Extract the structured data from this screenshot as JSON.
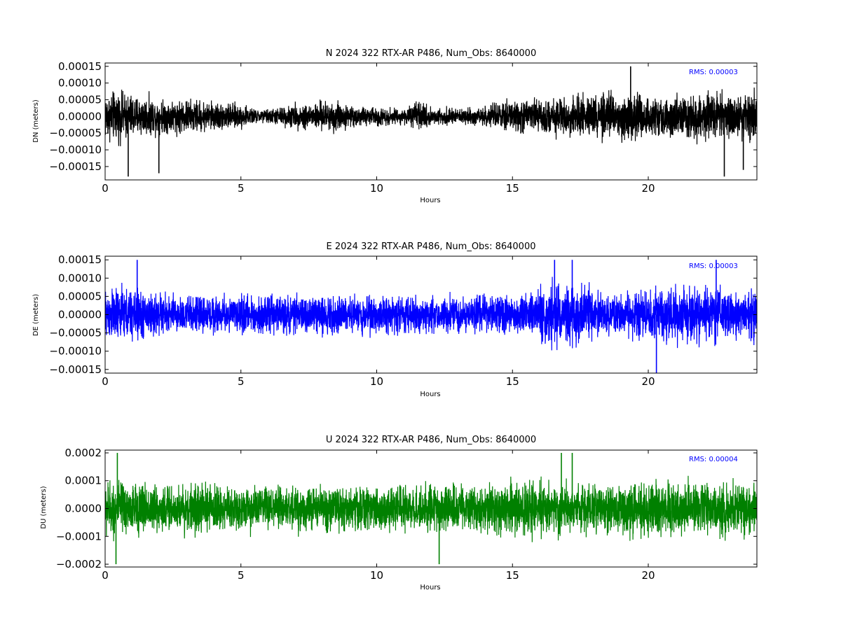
{
  "chart_data": [
    {
      "type": "line",
      "title": "N 2024 322 RTX-AR  P486, Num_Obs: 8640000",
      "xlabel": "Hours",
      "ylabel": "DN (meters)",
      "xlim": [
        0,
        24
      ],
      "ylim": [
        -0.00019,
        0.00016
      ],
      "xticks": [
        0,
        5,
        10,
        15,
        20
      ],
      "yticks": [
        -0.00015,
        -0.0001,
        -5e-05,
        0,
        5e-05,
        0.0001,
        0.00015
      ],
      "ytick_labels": [
        "−0.00015",
        "−0.00010",
        "−0.00005",
        "0.00000",
        "0.00005",
        "0.00010",
        "0.00015"
      ],
      "rms_label": "RMS:  0.00003",
      "color": "#000000",
      "envelope_hours": [
        0,
        0.5,
        1,
        2,
        3,
        4,
        5,
        5.5,
        6,
        7,
        8,
        8.5,
        9,
        10,
        11,
        11.5,
        12,
        13,
        14,
        15,
        16,
        17,
        18,
        19,
        20,
        21,
        22,
        23,
        24
      ],
      "envelope_amplitude": [
        0.0001,
        0.0001,
        9e-05,
        7e-05,
        7e-05,
        6e-05,
        5e-05,
        3e-05,
        3e-05,
        5e-05,
        6e-05,
        7e-05,
        4e-05,
        4e-05,
        3e-05,
        6e-05,
        4e-05,
        3e-05,
        4e-05,
        7e-05,
        7e-05,
        8e-05,
        9e-05,
        0.0001,
        8e-05,
        8e-05,
        9e-05,
        0.0001,
        0.0001
      ],
      "spikes": [
        [
          0.85,
          -0.00018
        ],
        [
          1.98,
          -0.00017
        ],
        [
          19.35,
          0.00015
        ],
        [
          22.8,
          -0.00018
        ],
        [
          23.5,
          -0.00016
        ]
      ]
    },
    {
      "type": "line",
      "title": "E 2024 322 RTX-AR  P486, Num_Obs: 8640000",
      "xlabel": "Hours",
      "ylabel": "DE (meters)",
      "xlim": [
        0,
        24
      ],
      "ylim": [
        -0.00016,
        0.00016
      ],
      "xticks": [
        0,
        5,
        10,
        15,
        20
      ],
      "yticks": [
        -0.00015,
        -0.0001,
        -5e-05,
        0,
        5e-05,
        0.0001,
        0.00015
      ],
      "ytick_labels": [
        "−0.00015",
        "−0.00010",
        "−0.00005",
        "0.00000",
        "0.00005",
        "0.00010",
        "0.00015"
      ],
      "rms_label": "RMS:  0.00003",
      "color": "#0000ff",
      "envelope_hours": [
        0,
        1,
        2,
        3,
        5,
        7,
        9,
        11,
        13,
        15,
        15.8,
        16,
        17,
        17.8,
        18,
        19,
        20,
        20.3,
        21,
        22,
        23,
        24
      ],
      "envelope_amplitude": [
        0.0001,
        0.0001,
        8e-05,
        7e-05,
        7e-05,
        7e-05,
        7e-05,
        7e-05,
        7e-05,
        7e-05,
        7e-05,
        0.00012,
        0.00012,
        0.00011,
        8e-05,
        8e-05,
        8e-05,
        0.0001,
        0.0001,
        0.0001,
        9e-05,
        9e-05
      ],
      "spikes": [
        [
          1.18,
          0.00015
        ],
        [
          16.55,
          0.00015
        ],
        [
          17.2,
          0.00015
        ],
        [
          20.3,
          -0.00016
        ],
        [
          22.5,
          0.00015
        ]
      ]
    },
    {
      "type": "line",
      "title": "U 2024 322 RTX-AR  P486, Num_Obs: 8640000",
      "xlabel": "Hours",
      "ylabel": "DU (meters)",
      "xlim": [
        0,
        24
      ],
      "ylim": [
        -0.00021,
        0.00021
      ],
      "xticks": [
        0,
        5,
        10,
        15,
        20
      ],
      "yticks": [
        -0.0002,
        -0.0001,
        0,
        0.0001,
        0.0002
      ],
      "ytick_labels": [
        "−0.0002",
        "−0.0001",
        "0.0000",
        "0.0001",
        "0.0002"
      ],
      "rms_label": "RMS:  0.00004",
      "color": "#008000",
      "envelope_hours": [
        0,
        1,
        3,
        5,
        7,
        9,
        10,
        12,
        14,
        16,
        18,
        20,
        22,
        24
      ],
      "envelope_amplitude": [
        0.00014,
        0.00013,
        0.00012,
        0.00011,
        0.00011,
        0.00011,
        0.00011,
        0.00011,
        0.00012,
        0.00013,
        0.00013,
        0.00013,
        0.00014,
        0.00013
      ],
      "spikes": [
        [
          0.45,
          0.0002
        ],
        [
          0.4,
          -0.0002
        ],
        [
          12.3,
          -0.0002
        ],
        [
          16.8,
          0.0002
        ],
        [
          17.2,
          0.0002
        ]
      ]
    }
  ]
}
